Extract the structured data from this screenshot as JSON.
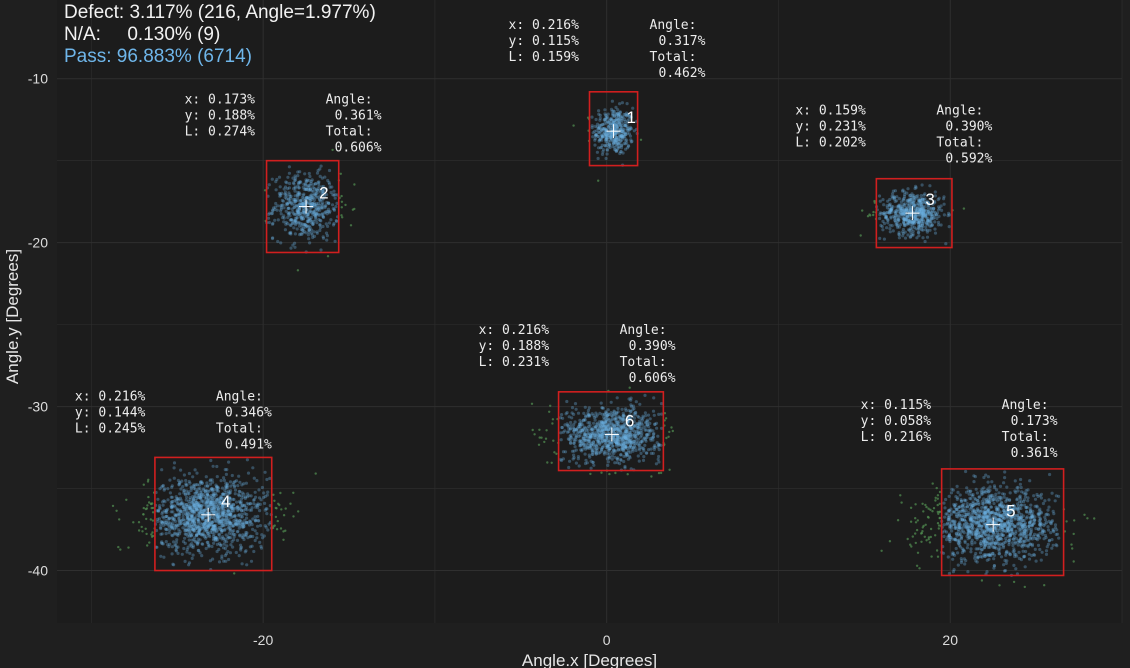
{
  "summary": {
    "defect": "Defect: 3.117% (216, Angle=1.977%)",
    "na": "N/A:     0.130% (9)",
    "pass": "Pass: 96.883% (6714)",
    "pass_color": "#6fb6ea"
  },
  "colors": {
    "background": "#1f1f1f",
    "plot_background": "#1c1c1c",
    "grid": "#2f2f2f",
    "point": "#6aaee0",
    "outlier": "#4f8a4f",
    "box": "#d11f1f",
    "crosshair": "#ffffff"
  },
  "chart_data": {
    "type": "scatter",
    "xlabel": "Angle.x [Degrees]",
    "ylabel": "Angle.y [Degrees]",
    "xlim": [
      -32,
      30
    ],
    "ylim": [
      -43.2,
      -5.2
    ],
    "xticks": [
      -20,
      0,
      20
    ],
    "yticks": [
      -10,
      -20,
      -30,
      -40
    ],
    "grid": true,
    "clusters": [
      {
        "id": "1",
        "center": [
          0.4,
          -13.2
        ],
        "spread": [
          0.8,
          1.0
        ],
        "box": {
          "x": [
            -1.0,
            1.8
          ],
          "y": [
            -15.3,
            -10.8
          ]
        },
        "n": 400,
        "stats": {
          "x": "x: 0.216%",
          "y": "y: 0.115%",
          "l": "L: 0.159%",
          "angle_label": "Angle:",
          "angle": "0.317%",
          "total_label": "Total:",
          "total": "0.462%"
        }
      },
      {
        "id": "2",
        "center": [
          -17.5,
          -17.8
        ],
        "spread": [
          1.3,
          1.4
        ],
        "box": {
          "x": [
            -19.8,
            -15.6
          ],
          "y": [
            -20.6,
            -15.0
          ]
        },
        "n": 550,
        "stats": {
          "x": "x: 0.173%",
          "y": "y: 0.188%",
          "l": "L: 0.274%",
          "angle_label": "Angle:",
          "angle": "0.361%",
          "total_label": "Total:",
          "total": "0.606%"
        }
      },
      {
        "id": "3",
        "center": [
          17.8,
          -18.2
        ],
        "spread": [
          1.3,
          0.9
        ],
        "box": {
          "x": [
            15.7,
            20.1
          ],
          "y": [
            -20.3,
            -16.1
          ]
        },
        "n": 550,
        "stats": {
          "x": "x: 0.159%",
          "y": "y: 0.231%",
          "l": "L: 0.202%",
          "angle_label": "Angle:",
          "angle": "0.390%",
          "total_label": "Total:",
          "total": "0.592%"
        }
      },
      {
        "id": "4",
        "center": [
          -23.2,
          -36.6
        ],
        "spread": [
          2.4,
          1.6
        ],
        "box": {
          "x": [
            -26.3,
            -19.5
          ],
          "y": [
            -40.0,
            -33.1
          ]
        },
        "n": 1300,
        "stats": {
          "x": "x: 0.216%",
          "y": "y: 0.144%",
          "l": "L: 0.245%",
          "angle_label": "Angle:",
          "angle": "0.346%",
          "total_label": "Total:",
          "total": "0.491%"
        }
      },
      {
        "id": "5",
        "center": [
          22.5,
          -37.2
        ],
        "spread": [
          2.5,
          1.5
        ],
        "box": {
          "x": [
            19.5,
            26.6
          ],
          "y": [
            -40.3,
            -33.8
          ]
        },
        "n": 1300,
        "stats": {
          "x": "x: 0.115%",
          "y": "y: 0.058%",
          "l": "L: 0.216%",
          "angle_label": "Angle:",
          "angle": "0.173%",
          "total_label": "Total:",
          "total": "0.361%"
        }
      },
      {
        "id": "6",
        "center": [
          0.3,
          -31.7
        ],
        "spread": [
          2.0,
          1.2
        ],
        "box": {
          "x": [
            -2.8,
            3.3
          ],
          "y": [
            -33.9,
            -29.1
          ]
        },
        "n": 950,
        "stats": {
          "x": "x: 0.216%",
          "y": "y: 0.188%",
          "l": "L: 0.231%",
          "angle_label": "Angle:",
          "angle": "0.390%",
          "total_label": "Total:",
          "total": "0.606%"
        }
      }
    ]
  }
}
